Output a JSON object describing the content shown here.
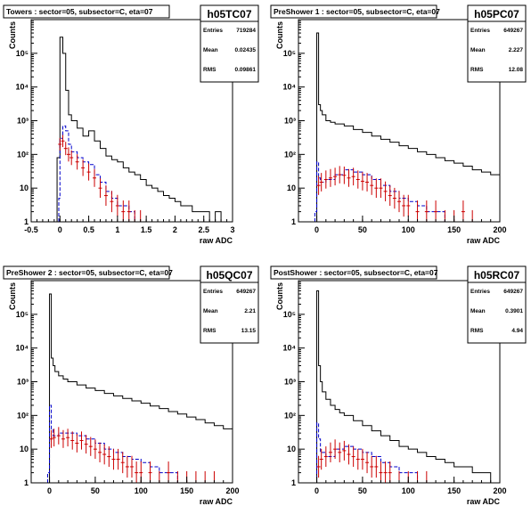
{
  "chart_data": [
    {
      "type": "histogram",
      "title": "Towers : sector=05, subsector=C, eta=07",
      "hist_name": "h05TC07",
      "stats": [
        {
          "label": "Entries",
          "value": "719284"
        },
        {
          "label": "Mean",
          "value": "0.02435"
        },
        {
          "label": "RMS",
          "value": "0.09861"
        }
      ],
      "xlabel": "raw ADC",
      "ylabel": "Counts",
      "xlim": [
        -0.5,
        3
      ],
      "ylim": [
        1,
        1000000
      ],
      "ylog": true,
      "x_ticks": [
        -0.5,
        0,
        0.5,
        1,
        1.5,
        2,
        2.5,
        3
      ],
      "x_tick_labels": [
        "-0.5",
        "0",
        "0.5",
        "1",
        "1.5",
        "2",
        "2.5",
        "3"
      ],
      "y_ticks": [
        1,
        10,
        100,
        1000,
        10000,
        100000
      ],
      "y_tick_labels": [
        "1",
        "10",
        "10²",
        "10³",
        "10⁴",
        "10⁵"
      ],
      "series": [
        {
          "style": "solid",
          "color": "#000000",
          "x": [
            -0.05,
            0,
            0.05,
            0.1,
            0.15,
            0.2,
            0.3,
            0.4,
            0.5,
            0.6,
            0.7,
            0.8,
            0.9,
            1.0,
            1.1,
            1.2,
            1.3,
            1.4,
            1.5,
            1.6,
            1.7,
            1.8,
            1.9,
            2.0,
            2.1,
            2.2,
            2.3,
            2.4,
            2.5,
            2.6,
            2.7,
            2.8,
            2.9
          ],
          "y": [
            80,
            300000,
            100000,
            8000,
            1500,
            1000,
            600,
            350,
            500,
            250,
            150,
            90,
            70,
            60,
            40,
            30,
            25,
            18,
            12,
            10,
            8,
            6,
            5,
            4,
            3,
            3,
            2,
            2,
            2,
            1,
            2,
            1,
            1
          ]
        },
        {
          "style": "dashed",
          "color": "#0000cc",
          "x": [
            -0.02,
            0.0,
            0.05,
            0.1,
            0.15,
            0.2,
            0.3,
            0.4,
            0.5,
            0.6,
            0.7,
            0.8,
            0.9,
            1.0,
            1.1,
            1.2,
            1.3
          ],
          "y": [
            5,
            300,
            700,
            500,
            200,
            120,
            80,
            60,
            50,
            25,
            15,
            8,
            5,
            3,
            3,
            2,
            1
          ]
        },
        {
          "style": "errorbar",
          "color": "#cc0000",
          "x": [
            0.0,
            0.05,
            0.1,
            0.15,
            0.2,
            0.3,
            0.4,
            0.5,
            0.6,
            0.7,
            0.8,
            0.9,
            1.0,
            1.1,
            1.2,
            1.3,
            1.4
          ],
          "y": [
            200,
            250,
            150,
            100,
            80,
            60,
            40,
            30,
            20,
            10,
            6,
            4,
            3,
            2,
            2,
            1,
            1
          ]
        }
      ]
    },
    {
      "type": "histogram",
      "title": "PreShower 1 : sector=05, subsector=C, eta=07",
      "hist_name": "h05PC07",
      "stats": [
        {
          "label": "Entries",
          "value": "649267"
        },
        {
          "label": "Mean",
          "value": "2.227"
        },
        {
          "label": "RMS",
          "value": "12.08"
        }
      ],
      "xlabel": "raw ADC",
      "ylabel": "Counts",
      "xlim": [
        -20,
        200
      ],
      "ylim": [
        1,
        1000000
      ],
      "ylog": true,
      "x_ticks": [
        0,
        50,
        100,
        150,
        200
      ],
      "x_tick_labels": [
        "0",
        "50",
        "100",
        "150",
        "200"
      ],
      "y_ticks": [
        1,
        10,
        100,
        1000,
        10000,
        100000
      ],
      "y_tick_labels": [
        "1",
        "10",
        "10²",
        "10³",
        "10⁴",
        "10⁵"
      ],
      "series": [
        {
          "style": "solid",
          "color": "#000000",
          "x": [
            -3,
            0,
            2,
            4,
            6,
            10,
            15,
            20,
            30,
            40,
            50,
            60,
            70,
            80,
            90,
            100,
            110,
            120,
            130,
            140,
            150,
            160,
            170,
            180,
            190,
            200
          ],
          "y": [
            1,
            400000,
            3000,
            2000,
            1500,
            1000,
            900,
            800,
            700,
            550,
            450,
            350,
            280,
            230,
            180,
            150,
            120,
            100,
            80,
            65,
            55,
            45,
            35,
            30,
            25,
            20
          ]
        },
        {
          "style": "dashed",
          "color": "#0000cc",
          "x": [
            -2,
            0,
            2,
            4,
            10,
            20,
            30,
            40,
            50,
            60,
            70,
            80,
            90,
            100,
            110,
            120,
            130,
            140,
            150,
            160
          ],
          "y": [
            2,
            60,
            20,
            15,
            18,
            25,
            35,
            30,
            25,
            18,
            12,
            8,
            5,
            4,
            3,
            2,
            2,
            1,
            1,
            1
          ]
        },
        {
          "style": "errorbar",
          "color": "#cc0000",
          "x": [
            2,
            5,
            10,
            15,
            20,
            25,
            30,
            35,
            40,
            45,
            50,
            55,
            60,
            65,
            70,
            75,
            80,
            85,
            90,
            95,
            100,
            110,
            120,
            130,
            140,
            150,
            160,
            170
          ],
          "y": [
            12,
            15,
            18,
            20,
            22,
            25,
            24,
            20,
            22,
            18,
            16,
            15,
            12,
            10,
            10,
            8,
            6,
            5,
            4,
            3,
            3,
            2,
            2,
            2,
            1,
            1,
            2,
            1
          ]
        }
      ]
    },
    {
      "type": "histogram",
      "title": "PreShower 2 : sector=05, subsector=C, eta=07",
      "hist_name": "h05QC07",
      "stats": [
        {
          "label": "Entries",
          "value": "649267"
        },
        {
          "label": "Mean",
          "value": "2.21"
        },
        {
          "label": "RMS",
          "value": "13.15"
        }
      ],
      "xlabel": "raw ADC",
      "ylabel": "Counts",
      "xlim": [
        -20,
        200
      ],
      "ylim": [
        1,
        1000000
      ],
      "ylog": true,
      "x_ticks": [
        0,
        50,
        100,
        150,
        200
      ],
      "x_tick_labels": [
        "0",
        "50",
        "100",
        "150",
        "200"
      ],
      "y_ticks": [
        1,
        10,
        100,
        1000,
        10000,
        100000
      ],
      "y_tick_labels": [
        "1",
        "10",
        "10²",
        "10³",
        "10⁴",
        "10⁵"
      ],
      "series": [
        {
          "style": "solid",
          "color": "#000000",
          "x": [
            -3,
            0,
            2,
            4,
            6,
            10,
            15,
            20,
            30,
            40,
            50,
            60,
            70,
            80,
            90,
            100,
            110,
            120,
            130,
            140,
            150,
            160,
            170,
            180,
            190,
            200
          ],
          "y": [
            1,
            400000,
            5000,
            3000,
            2000,
            1500,
            1200,
            1000,
            800,
            650,
            550,
            450,
            380,
            320,
            270,
            230,
            190,
            160,
            130,
            110,
            90,
            75,
            60,
            50,
            40,
            30
          ]
        },
        {
          "style": "dashed",
          "color": "#0000cc",
          "x": [
            -2,
            0,
            2,
            4,
            10,
            20,
            30,
            40,
            50,
            60,
            70,
            80,
            90,
            100,
            110,
            120,
            130,
            140,
            150,
            160
          ],
          "y": [
            2,
            200,
            40,
            25,
            30,
            30,
            25,
            20,
            15,
            10,
            8,
            6,
            5,
            4,
            3,
            2,
            2,
            1,
            1,
            1
          ]
        },
        {
          "style": "errorbar",
          "color": "#cc0000",
          "x": [
            2,
            5,
            10,
            15,
            20,
            25,
            30,
            35,
            40,
            45,
            50,
            55,
            60,
            65,
            70,
            75,
            80,
            85,
            90,
            95,
            100,
            110,
            120,
            130,
            140,
            150,
            160,
            170,
            180
          ],
          "y": [
            20,
            22,
            25,
            20,
            22,
            18,
            15,
            18,
            14,
            12,
            10,
            8,
            7,
            6,
            5,
            5,
            4,
            3,
            3,
            2,
            2,
            2,
            1,
            2,
            1,
            1,
            1,
            1,
            1
          ]
        }
      ]
    },
    {
      "type": "histogram",
      "title": "PostShower : sector=05, subsector=C, eta=07",
      "hist_name": "h05RC07",
      "stats": [
        {
          "label": "Entries",
          "value": "649267"
        },
        {
          "label": "Mean",
          "value": "0.3901"
        },
        {
          "label": "RMS",
          "value": "4.94"
        }
      ],
      "xlabel": "raw ADC",
      "ylabel": "Counts",
      "xlim": [
        -20,
        200
      ],
      "ylim": [
        1,
        1000000
      ],
      "ylog": true,
      "x_ticks": [
        0,
        50,
        100,
        150,
        200
      ],
      "x_tick_labels": [
        "0",
        "50",
        "100",
        "150",
        "200"
      ],
      "y_ticks": [
        1,
        10,
        100,
        1000,
        10000,
        100000
      ],
      "y_tick_labels": [
        "1",
        "10",
        "10²",
        "10³",
        "10⁴",
        "10⁵"
      ],
      "series": [
        {
          "style": "solid",
          "color": "#000000",
          "x": [
            -3,
            0,
            2,
            4,
            6,
            10,
            15,
            20,
            25,
            30,
            40,
            50,
            60,
            70,
            80,
            90,
            100,
            110,
            120,
            130,
            140,
            150,
            160,
            170,
            180,
            190,
            200
          ],
          "y": [
            1,
            500000,
            3000,
            1000,
            500,
            300,
            200,
            150,
            120,
            100,
            70,
            50,
            35,
            25,
            18,
            12,
            10,
            8,
            6,
            5,
            4,
            3,
            3,
            2,
            2,
            1,
            2
          ]
        },
        {
          "style": "dashed",
          "color": "#0000cc",
          "x": [
            -2,
            0,
            2,
            4,
            10,
            20,
            30,
            40,
            50,
            60,
            70,
            80,
            90,
            100,
            110,
            120,
            130
          ],
          "y": [
            1,
            60,
            20,
            8,
            6,
            10,
            12,
            10,
            8,
            6,
            4,
            3,
            2,
            2,
            1,
            1,
            1
          ]
        },
        {
          "style": "errorbar",
          "color": "#cc0000",
          "x": [
            2,
            5,
            10,
            15,
            20,
            25,
            30,
            35,
            40,
            45,
            50,
            55,
            60,
            65,
            70,
            75,
            80,
            90,
            100,
            110,
            120
          ],
          "y": [
            3,
            5,
            6,
            8,
            10,
            8,
            9,
            7,
            6,
            5,
            5,
            4,
            3,
            3,
            2,
            2,
            2,
            1,
            1,
            1,
            1
          ]
        }
      ]
    }
  ]
}
